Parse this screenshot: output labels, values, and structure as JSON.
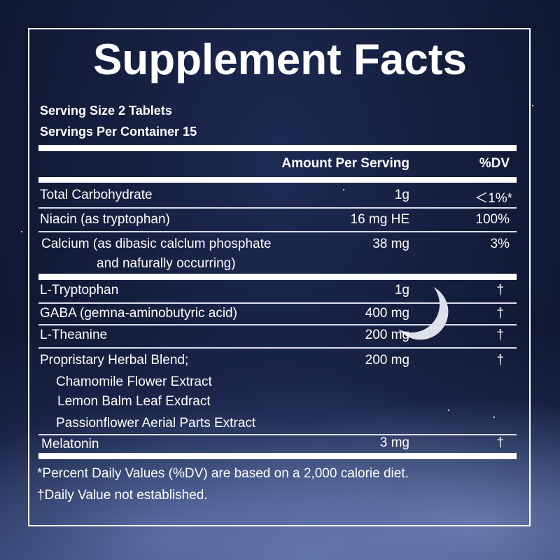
{
  "title": "Supplement Facts",
  "serving_size": "Serving Size 2 Tablets",
  "servings_per_container": "Servings Per Container 15",
  "header": {
    "amount": "Amount Per Serving",
    "dv": "%DV"
  },
  "nutrients": [
    {
      "name": "Total Carbohydrate",
      "amount": "1g",
      "dv": "＜1%*"
    },
    {
      "name": "Niacin (as tryptophan)",
      "amount": "16 mg HE",
      "dv": "100%"
    },
    {
      "name": "Calcium (as dibasic calclum phosphate",
      "name_line2": "and nafurally occurring)",
      "amount": "38 mg",
      "dv": "3%"
    }
  ],
  "ingredients": [
    {
      "name": "L-Tryptophan",
      "amount": "1g",
      "dv": "†"
    },
    {
      "name": "GABA (gemna-aminobutyric acid)",
      "amount": "400 mg",
      "dv": "†"
    },
    {
      "name": "L-Theanine",
      "amount": "200 mg",
      "dv": "†"
    },
    {
      "name": "Propristary Herbal Blend;",
      "amount": "200 mg",
      "dv": "†",
      "sub": [
        "Chamomile Flower Extract",
        "Lemon Balm Leaf Exdract",
        "Passionflower Aerial Parts Extract"
      ]
    },
    {
      "name": "Melatonin",
      "amount": "3 mg",
      "dv": "†"
    }
  ],
  "footnotes": [
    "*Percent Daily Values (%DV) are based on a 2,000 calorie diet.",
    "†Daily Value not established."
  ]
}
